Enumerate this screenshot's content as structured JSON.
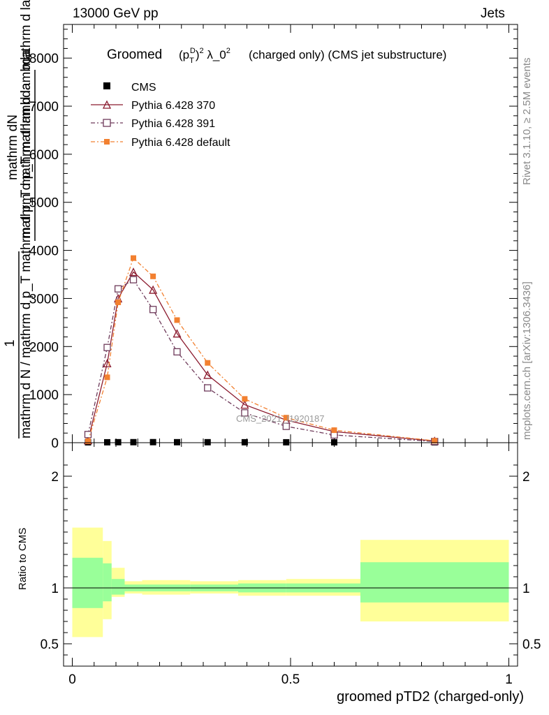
{
  "header": {
    "energy_label": "13000 GeV pp",
    "category_label": "Jets"
  },
  "side_labels": {
    "rivet": "Rivet 3.1.10, ≥ 2.5M events",
    "mcplots": "mcplots.cern.ch [arXiv:1306.3436]"
  },
  "chart_data": {
    "type": "line",
    "title": {
      "groomed": "Groomed",
      "formula": "(p_T^D)^2 λ_0^2",
      "suffix": "(charged only) (CMS jet substructure)"
    },
    "watermark": "CMS_2021_I1920187",
    "xlabel": "groomed pTD2 (charged-only)",
    "ylabel": {
      "numerator": "1",
      "denominator": "mathrm d N / mathrm d p_T mathrm d p_T mathrm d lambda",
      "overlay": "mathrm dN",
      "fraction_top": "mathrm d p_T mathrm d lambda"
    },
    "xlim": [
      -0.02,
      1.02
    ],
    "ylim": [
      0,
      8700
    ],
    "x_ticks": [
      0,
      0.5,
      1
    ],
    "x_tick_labels": [
      "0",
      "0.5",
      "1"
    ],
    "y_ticks": [
      0,
      1000,
      2000,
      3000,
      4000,
      5000,
      6000,
      7000,
      8000
    ],
    "y_tick_labels": [
      "0",
      "1000",
      "2000",
      "3000",
      "4000",
      "5000",
      "6000",
      "7000",
      "8000"
    ],
    "x": [
      0.036,
      0.08,
      0.105,
      0.14,
      0.185,
      0.24,
      0.31,
      0.395,
      0.49,
      0.6,
      0.83
    ],
    "series": [
      {
        "name": "CMS",
        "color": "#000000",
        "marker": "square",
        "values": [
          0.5,
          1.3,
          2.8,
          3.5,
          4.0,
          2.8,
          2.4,
          1.8,
          1.2,
          0.9,
          0.3
        ],
        "legend": "CMS"
      },
      {
        "name": "Pythia 6.428 370",
        "color": "#8b1a2e",
        "marker": "triangle",
        "dash": "solid",
        "values": [
          50,
          1650,
          3000,
          3550,
          3180,
          2270,
          1410,
          790,
          470,
          230,
          35
        ],
        "legend": "Pythia 6.428 370"
      },
      {
        "name": "Pythia 6.428 391",
        "color": "#6e3a5a",
        "marker": "open-square",
        "dash": "dashdot",
        "values": [
          170,
          1980,
          3200,
          3390,
          2770,
          1890,
          1140,
          620,
          340,
          160,
          25
        ],
        "legend": "Pythia 6.428 391"
      },
      {
        "name": "Pythia 6.428 default",
        "color": "#f28030",
        "marker": "filled-square",
        "dash": "dashdot",
        "values": [
          30,
          1360,
          2920,
          3840,
          3460,
          2550,
          1660,
          910,
          520,
          260,
          40
        ],
        "legend": "Pythia 6.428 default"
      }
    ],
    "ratio": {
      "ylabel": "Ratio to CMS",
      "ylim": [
        0.3,
        2.3
      ],
      "y_ticks": [
        0.5,
        1,
        2
      ],
      "y_tick_labels": [
        "0.5",
        "1",
        "2"
      ],
      "bands": [
        {
          "x0": 0.0,
          "x1": 0.07,
          "green": [
            0.82,
            1.27
          ],
          "yellow": [
            0.56,
            1.54
          ]
        },
        {
          "x0": 0.07,
          "x1": 0.09,
          "green": [
            0.88,
            1.22
          ],
          "yellow": [
            0.72,
            1.42
          ]
        },
        {
          "x0": 0.09,
          "x1": 0.12,
          "green": [
            0.94,
            1.08
          ],
          "yellow": [
            0.92,
            1.18
          ]
        },
        {
          "x0": 0.12,
          "x1": 0.16,
          "green": [
            0.97,
            1.03
          ],
          "yellow": [
            0.95,
            1.06
          ]
        },
        {
          "x0": 0.16,
          "x1": 0.27,
          "green": [
            0.97,
            1.03
          ],
          "yellow": [
            0.94,
            1.07
          ]
        },
        {
          "x0": 0.27,
          "x1": 0.38,
          "green": [
            0.97,
            1.03
          ],
          "yellow": [
            0.95,
            1.06
          ]
        },
        {
          "x0": 0.38,
          "x1": 0.49,
          "green": [
            0.96,
            1.04
          ],
          "yellow": [
            0.93,
            1.07
          ]
        },
        {
          "x0": 0.49,
          "x1": 0.66,
          "green": [
            0.96,
            1.04
          ],
          "yellow": [
            0.93,
            1.08
          ]
        },
        {
          "x0": 0.66,
          "x1": 1.0,
          "green": [
            0.87,
            1.23
          ],
          "yellow": [
            0.7,
            1.43
          ]
        }
      ]
    }
  }
}
